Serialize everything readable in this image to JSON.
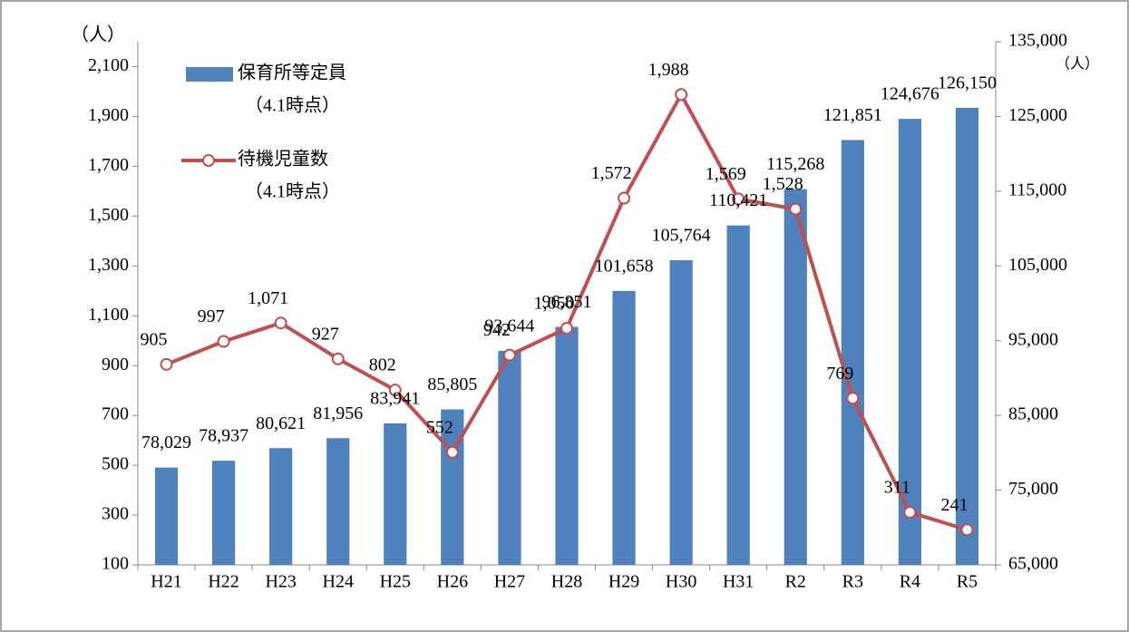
{
  "chart_data": {
    "type": "bar-line",
    "y_unit": "（人）",
    "y2_unit": "（人）",
    "categories": [
      "H21",
      "H22",
      "H23",
      "H24",
      "H25",
      "H26",
      "H27",
      "H28",
      "H29",
      "H30",
      "H31",
      "R2",
      "R3",
      "R4",
      "R5"
    ],
    "series": [
      {
        "name": "保育所等定員",
        "legend_note": "（4.1時点）",
        "type": "bar",
        "axis": "y2",
        "color": "#4f81bd",
        "values": [
          78029,
          78937,
          80621,
          81956,
          83941,
          85805,
          93644,
          96851,
          101658,
          105764,
          110421,
          115268,
          121851,
          124676,
          126150
        ],
        "value_labels": [
          "78,029",
          "78,937",
          "80,621",
          "81,956",
          "83,941",
          "85,805",
          "93,644",
          "96,851",
          "101,658",
          "105,764",
          "110,421",
          "115,268",
          "121,851",
          "124,676",
          "126,150"
        ]
      },
      {
        "name": "待機児童数",
        "legend_note": "（4.1時点）",
        "type": "line",
        "axis": "y",
        "color": "#c0504d",
        "values": [
          905,
          997,
          1071,
          927,
          802,
          552,
          942,
          1050,
          1572,
          1988,
          1569,
          1528,
          769,
          311,
          241
        ],
        "value_labels": [
          "905",
          "997",
          "1,071",
          "927",
          "802",
          "552",
          "942",
          "1,050",
          "1,572",
          "1,988",
          "1,569",
          "1,528",
          "769",
          "311",
          "241"
        ]
      }
    ],
    "ylim": [
      100,
      2200
    ],
    "yticks": [
      100,
      300,
      500,
      700,
      900,
      {
        "value": 1100,
        "label": "1,100"
      },
      {
        "value": 1300,
        "label": "1,300"
      },
      {
        "value": 1500,
        "label": "1,500"
      },
      {
        "value": 1700,
        "label": "1,700"
      },
      {
        "value": 1900,
        "label": "1,900"
      },
      {
        "value": 2100,
        "label": "2,100"
      }
    ],
    "y2lim": [
      65000,
      135000
    ],
    "y2ticks": [
      {
        "value": 65000,
        "label": "65,000"
      },
      {
        "value": 75000,
        "label": "75,000"
      },
      {
        "value": 85000,
        "label": "85,000"
      },
      {
        "value": 95000,
        "label": "95,000"
      },
      {
        "value": 105000,
        "label": "105,000"
      },
      {
        "value": 115000,
        "label": "115,000"
      },
      {
        "value": 125000,
        "label": "125,000"
      },
      {
        "value": 135000,
        "label": "135,000"
      }
    ],
    "grid": false
  }
}
